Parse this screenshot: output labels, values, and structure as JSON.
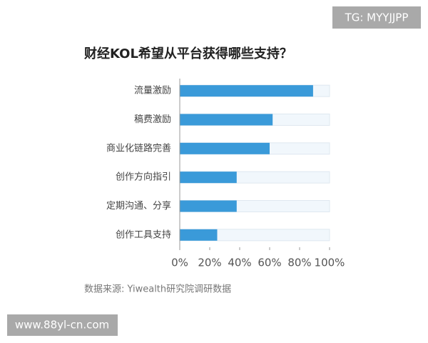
{
  "chart_data": {
    "type": "bar",
    "orientation": "horizontal",
    "title": "财经KOL希望从平台获得哪些支持？",
    "categories": [
      "流量激励",
      "稿费激励",
      "商业化链路完善",
      "创作方向指引",
      "定期沟通、分享",
      "创作工具支持"
    ],
    "values": [
      89,
      62,
      60,
      38,
      38,
      25
    ],
    "color": "#3a9ad9",
    "xlim": [
      0,
      100
    ],
    "xticks": [
      {
        "value": 0,
        "label": "0%"
      },
      {
        "value": 20,
        "label": "20%"
      },
      {
        "value": 40,
        "label": "40%"
      },
      {
        "value": 60,
        "label": "60%"
      },
      {
        "value": 80,
        "label": "80%"
      },
      {
        "value": 100,
        "label": "100%"
      }
    ],
    "source": "数据来源: Yiwealth研究院调研数据"
  },
  "watermarks": [
    "TG: MYYJJPP",
    "www.88yl-cn.com"
  ]
}
